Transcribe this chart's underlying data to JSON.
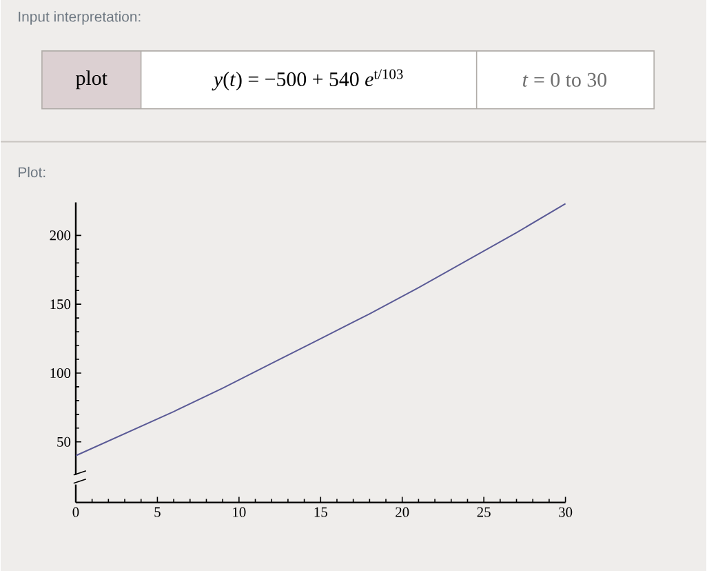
{
  "chart_data": {
    "type": "line",
    "annotations": [
      "Input interpretation:",
      "plot",
      "*y*(*t*) = −500 + 540 *e*$^{t/103}$",
      "*t* = 0 to 30",
      "Plot:"
    ],
    "x": [
      0,
      3,
      6,
      9,
      12,
      15,
      18,
      21,
      24,
      27,
      30
    ],
    "series": [
      {
        "color": "#5a5a96",
        "values": [
          40,
          56,
          72,
          89,
          107,
          125,
          143,
          162,
          182,
          202,
          223
        ]
      }
    ],
    "xlim": [
      0,
      30
    ],
    "ylim": [
      6,
      224
    ],
    "xticks": [
      0,
      5,
      10,
      15,
      20,
      25,
      30
    ],
    "yticks": [
      50,
      100,
      150,
      200
    ]
  }
}
